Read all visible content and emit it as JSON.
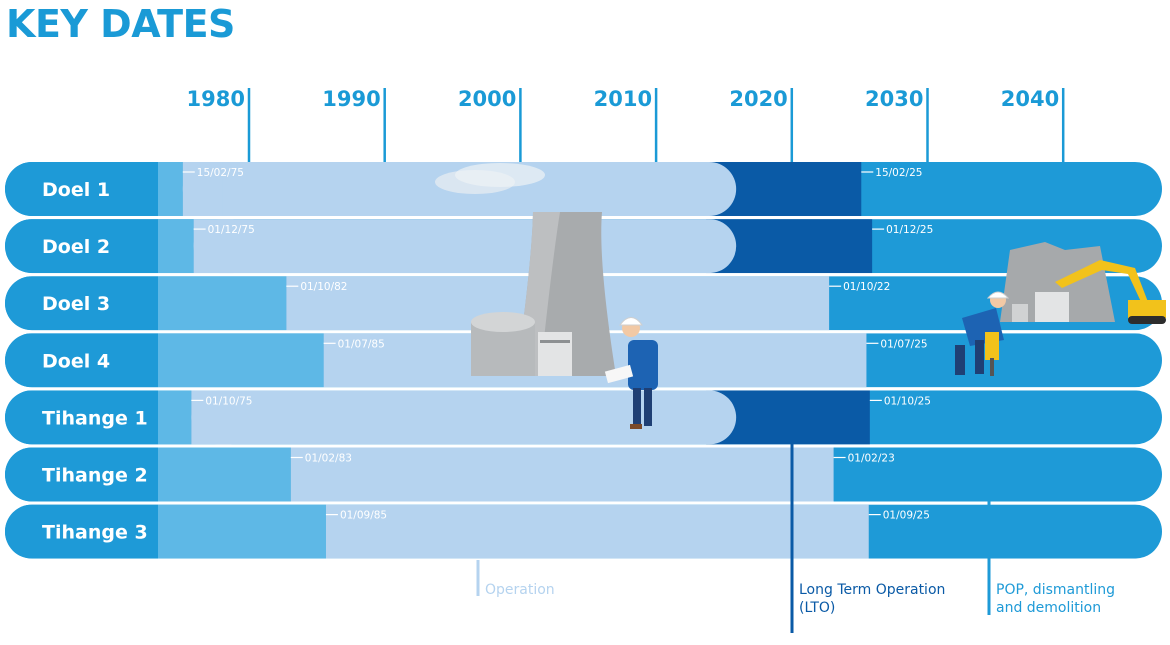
{
  "title": "KEY DATES",
  "colors": {
    "title": "#1a9ad6",
    "label_block": "#1e9ad7",
    "pre_operation": "#5eb8e6",
    "operation": "#b5d3ef",
    "lto": "#0a5aa6",
    "pop_dismantling": "#1e9ad7",
    "axis": "#1a9ad6"
  },
  "chart_data": {
    "type": "timeline",
    "xlim": [
      1969,
      2050
    ],
    "x_ticks": [
      "1980",
      "1990",
      "2000",
      "2010",
      "2020",
      "2030",
      "2040"
    ],
    "series": [
      {
        "name": "Operation"
      },
      {
        "name": "Long Term Operation (LTO)"
      },
      {
        "name": "POP, dismantling and demolition"
      }
    ],
    "reactors": [
      {
        "name": "Doel 1",
        "start_date": "15/02/75",
        "start": 1975.12,
        "lto_start": 2015.9,
        "end_date": "15/02/25",
        "end": 2025.12,
        "has_lto": true
      },
      {
        "name": "Doel 2",
        "start_date": "01/12/75",
        "start": 1975.92,
        "lto_start": 2015.9,
        "end_date": "01/12/25",
        "end": 2025.92,
        "has_lto": true
      },
      {
        "name": "Doel 3",
        "start_date": "01/10/82",
        "start": 1982.75,
        "lto_start": null,
        "end_date": "01/10/22",
        "end": 2022.75,
        "has_lto": false
      },
      {
        "name": "Doel 4",
        "start_date": "01/07/85",
        "start": 1985.5,
        "lto_start": null,
        "end_date": "01/07/25",
        "end": 2025.5,
        "has_lto": false
      },
      {
        "name": "Tihange 1",
        "start_date": "01/10/75",
        "start": 1975.75,
        "lto_start": 2015.9,
        "end_date": "01/10/25",
        "end": 2025.75,
        "has_lto": true
      },
      {
        "name": "Tihange 2",
        "start_date": "01/02/83",
        "start": 1983.08,
        "lto_start": null,
        "end_date": "01/02/23",
        "end": 2023.08,
        "has_lto": false
      },
      {
        "name": "Tihange 3",
        "start_date": "01/09/85",
        "start": 1985.67,
        "lto_start": null,
        "end_date": "01/09/25",
        "end": 2025.67,
        "has_lto": false
      }
    ]
  },
  "legend": {
    "operation": "Operation",
    "lto_line1": "Long Term Operation",
    "lto_line2": "(LTO)",
    "pop_line1": "POP, dismantling",
    "pop_line2": "and demolition"
  }
}
